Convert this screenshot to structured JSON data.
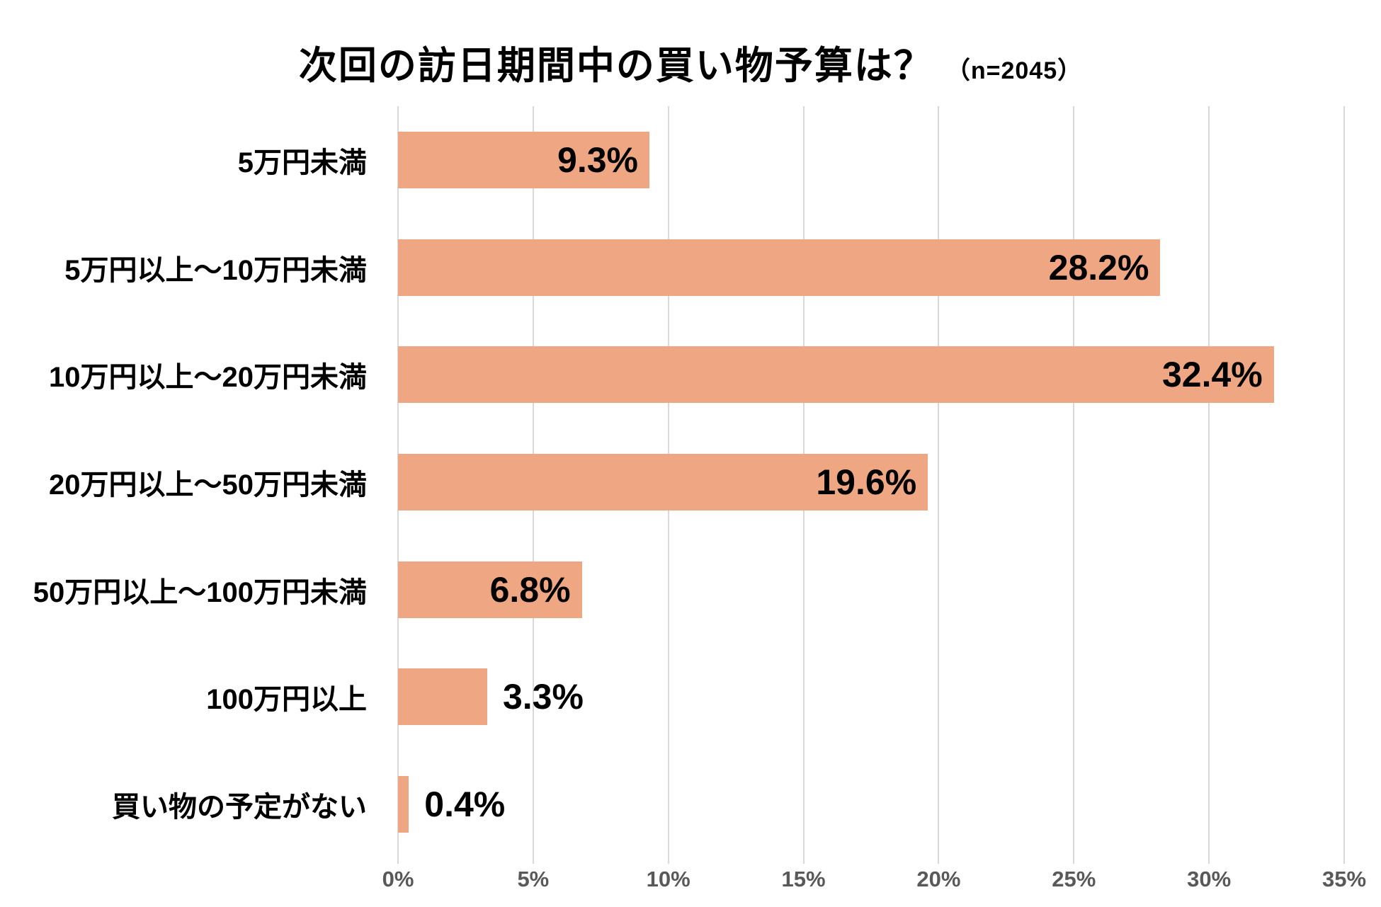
{
  "title": "次回の訪日期間中の買い物予算は？",
  "subtitle": "（n=2045）",
  "chart_data": {
    "type": "bar",
    "orientation": "horizontal",
    "title": "次回の訪日期間中の買い物予算は？",
    "sample_size_note": "（n=2045）",
    "categories": [
      "5万円未満",
      "5万円以上～10万円未満",
      "10万円以上～20万円未満",
      "20万円以上～50万円未満",
      "50万円以上～100万円未満",
      "100万円以上",
      "買い物の予定がない"
    ],
    "values": [
      9.3,
      28.2,
      32.4,
      19.6,
      6.8,
      3.3,
      0.4
    ],
    "value_labels": [
      "9.3%",
      "28.2%",
      "32.4%",
      "19.6%",
      "6.8%",
      "3.3%",
      "0.4%"
    ],
    "x_ticks": [
      "0%",
      "5%",
      "10%",
      "15%",
      "20%",
      "25%",
      "30%",
      "35%"
    ],
    "xlim": [
      0,
      35
    ],
    "xlabel": "",
    "ylabel": "",
    "grid": true,
    "legend": false,
    "bar_color": "#efa683",
    "gridline_color": "#d9d9d9",
    "tick_label_color": "#595959",
    "text_color": "#000000",
    "background_color": "#ffffff"
  }
}
